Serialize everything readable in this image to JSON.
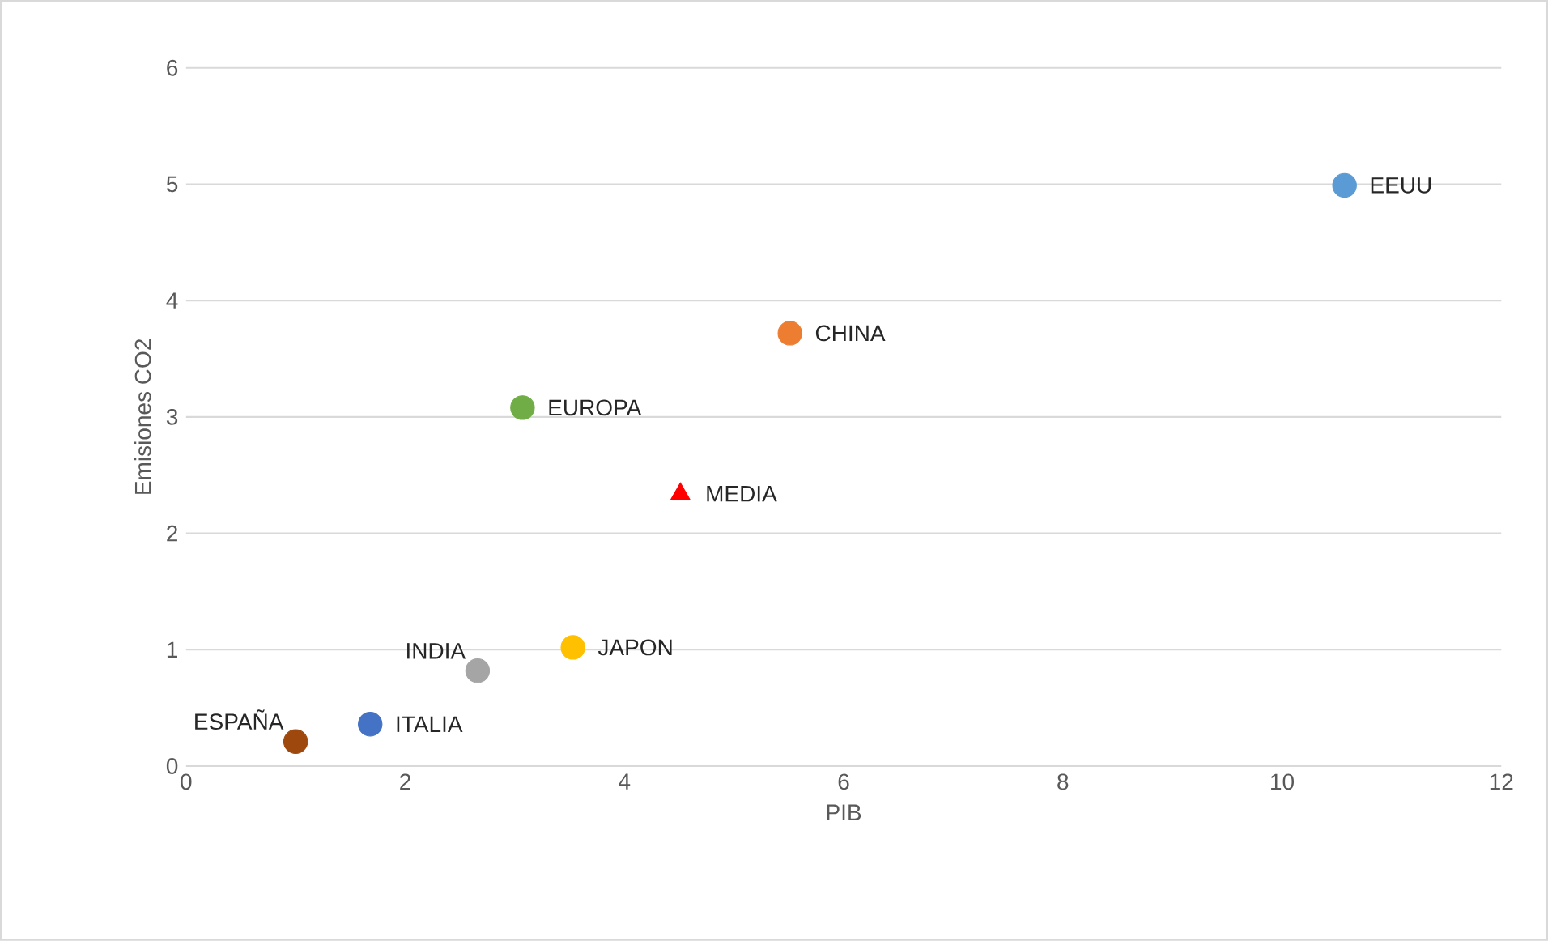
{
  "chart_data": {
    "type": "scatter",
    "xlabel": "PIB",
    "ylabel": "Emisiones CO2",
    "xlim": [
      0,
      12
    ],
    "ylim": [
      0,
      6
    ],
    "xticks": [
      0,
      2,
      4,
      6,
      8,
      10,
      12
    ],
    "yticks": [
      0,
      1,
      2,
      3,
      4,
      5,
      6
    ],
    "grid": "y",
    "legend": false,
    "marker": "circle",
    "series": [
      {
        "name": "EEUU",
        "color": "#5b9bd5",
        "x": [
          10.57
        ],
        "values": [
          4.99
        ]
      },
      {
        "name": "CHINA",
        "color": "#ed7d31",
        "x": [
          5.51
        ],
        "values": [
          3.72
        ]
      },
      {
        "name": "EUROPA",
        "color": "#70ad47",
        "x": [
          3.07
        ],
        "values": [
          3.08
        ]
      },
      {
        "name": "MEDIA",
        "color": "#ff0000",
        "marker": "triangle",
        "x": [
          4.51
        ],
        "values": [
          2.34
        ]
      },
      {
        "name": "JAPON",
        "color": "#ffc000",
        "x": [
          3.53
        ],
        "values": [
          1.02
        ]
      },
      {
        "name": "INDIA",
        "color": "#a5a5a5",
        "x": [
          2.66
        ],
        "values": [
          0.82
        ]
      },
      {
        "name": "ITALIA",
        "color": "#4472c4",
        "x": [
          1.68
        ],
        "values": [
          0.36
        ]
      },
      {
        "name": "ESPAÑA",
        "color": "#9e480e",
        "x": [
          1.0
        ],
        "values": [
          0.21
        ]
      }
    ]
  }
}
